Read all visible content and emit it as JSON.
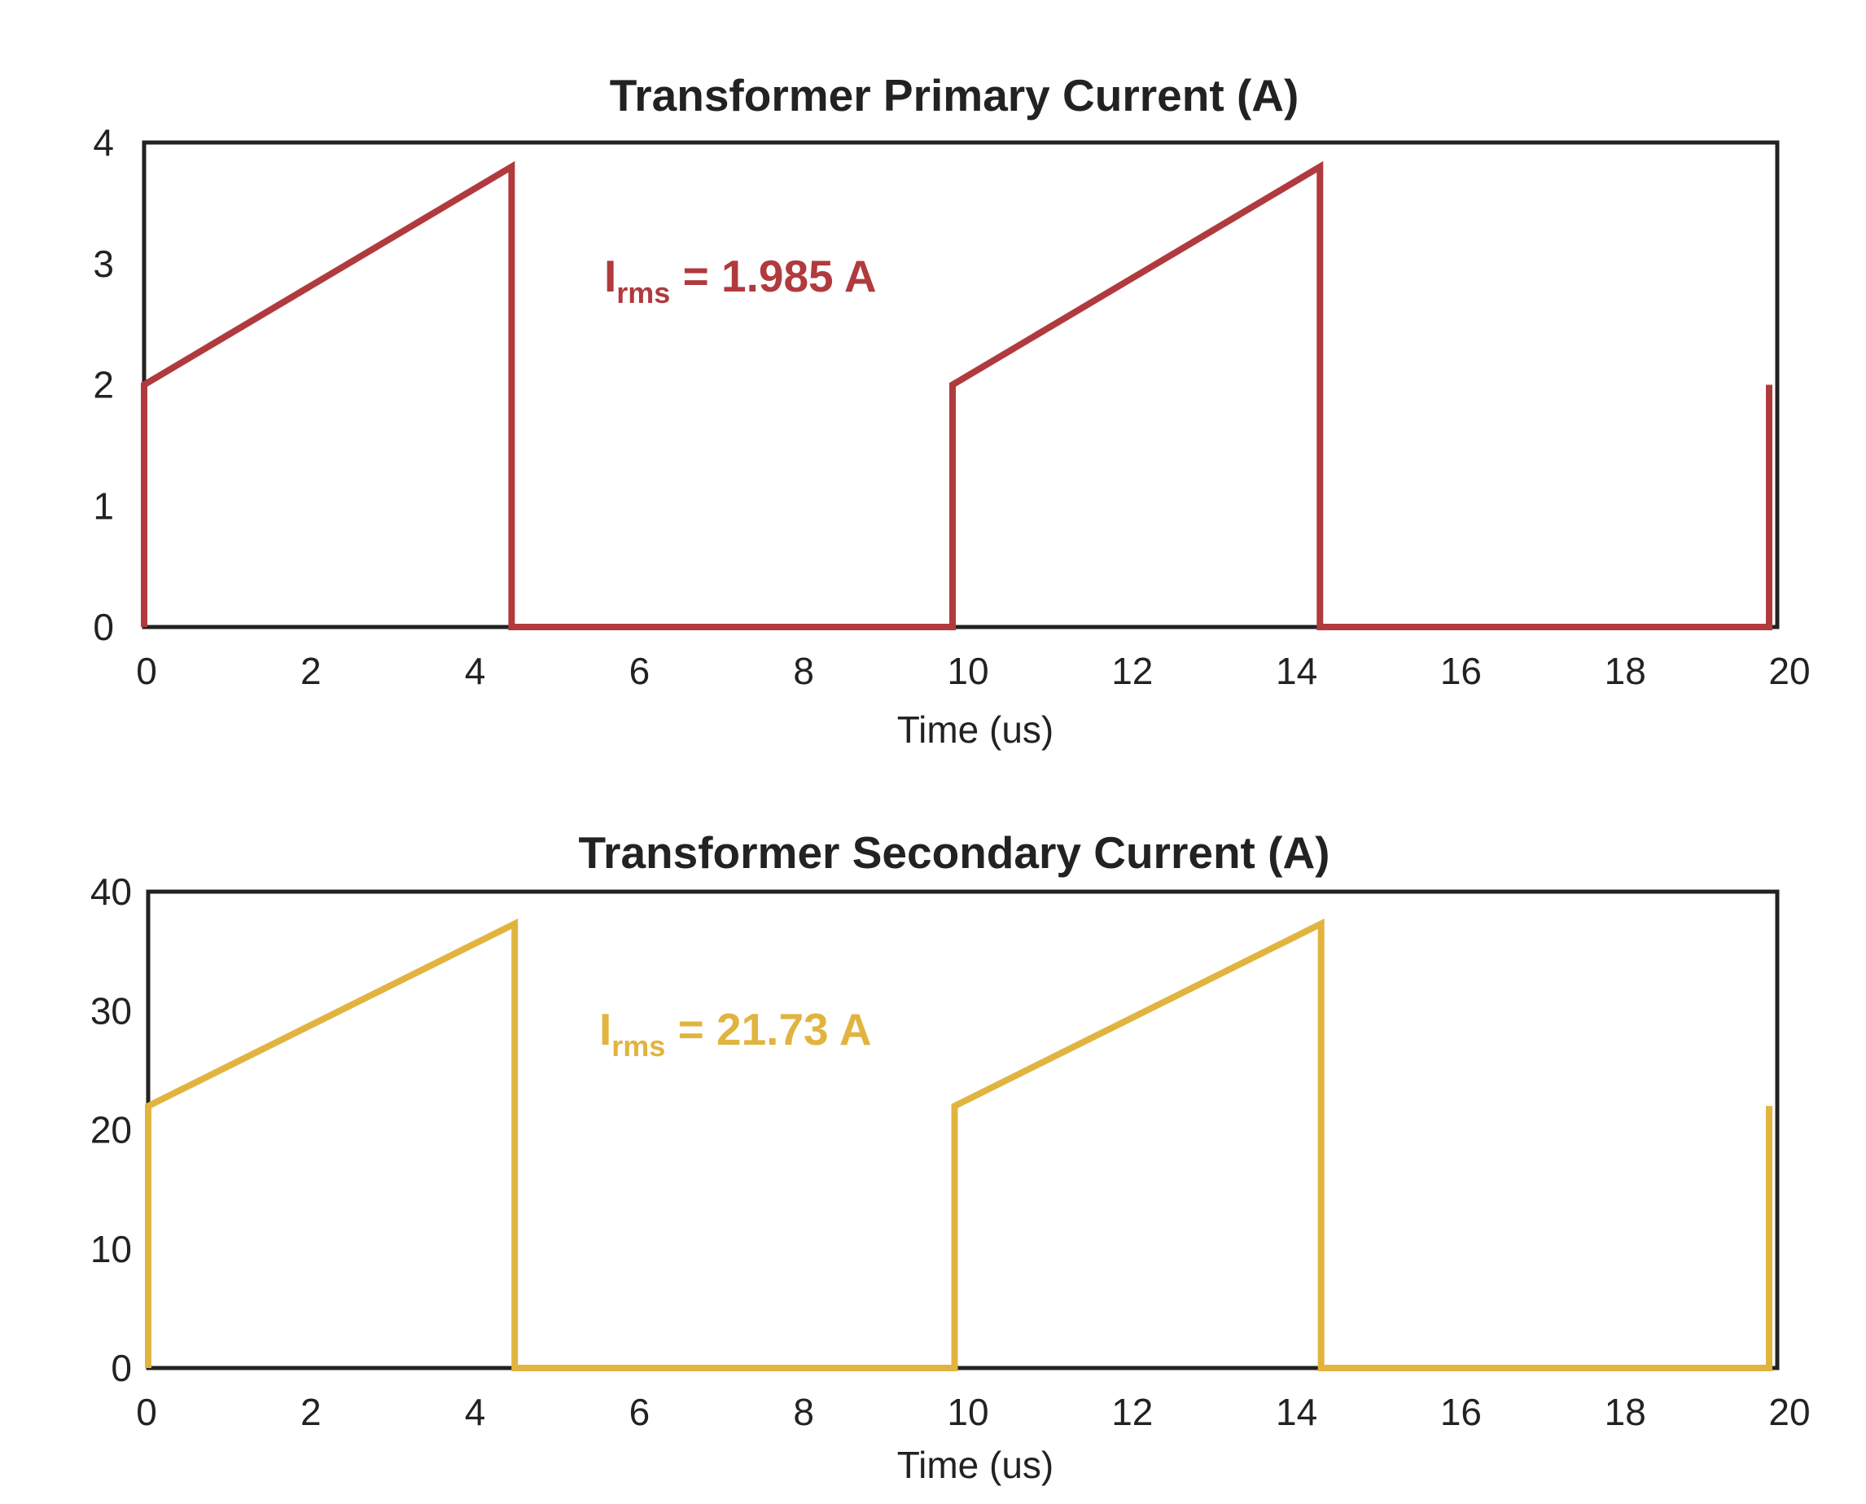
{
  "chart_data": [
    {
      "type": "line",
      "title": "Transformer Primary Current (A)",
      "xlabel": "Time (us)",
      "ylabel": "",
      "xlim": [
        0,
        20
      ],
      "ylim": [
        0,
        4
      ],
      "xticks": [
        "0",
        "2",
        "4",
        "6",
        "8",
        "10",
        "12",
        "14",
        "16",
        "18",
        "20"
      ],
      "yticks": [
        "0",
        "1",
        "2",
        "3",
        "4"
      ],
      "grid": false,
      "color": "#b03a3e",
      "series": [
        {
          "x": [
            0,
            0,
            4.5,
            4.5,
            9.9,
            9.9,
            14.4,
            14.4,
            19.9,
            19.9
          ],
          "y": [
            0,
            2,
            3.8,
            0,
            0,
            2,
            3.8,
            0,
            0,
            2
          ]
        }
      ],
      "annotation": {
        "main": "I",
        "sub": "rms",
        "rest": " = 1.985 A"
      }
    },
    {
      "type": "line",
      "title": "Transformer Secondary Current (A)",
      "xlabel": "Time (us)",
      "ylabel": "",
      "xlim": [
        0,
        20
      ],
      "ylim": [
        0,
        40
      ],
      "xticks": [
        "0",
        "2",
        "4",
        "6",
        "8",
        "10",
        "12",
        "14",
        "16",
        "18",
        "20"
      ],
      "yticks": [
        "0",
        "10",
        "20",
        "30",
        "40"
      ],
      "grid": false,
      "color": "#e1b43f",
      "series": [
        {
          "x": [
            0,
            0,
            4.5,
            4.5,
            9.9,
            9.9,
            14.4,
            14.4,
            19.9,
            19.9
          ],
          "y": [
            0,
            22,
            37.3,
            0,
            0,
            22,
            37.3,
            0,
            0,
            22
          ]
        }
      ],
      "annotation": {
        "main": "I",
        "sub": "rms",
        "rest": " = 21.73 A"
      }
    }
  ]
}
